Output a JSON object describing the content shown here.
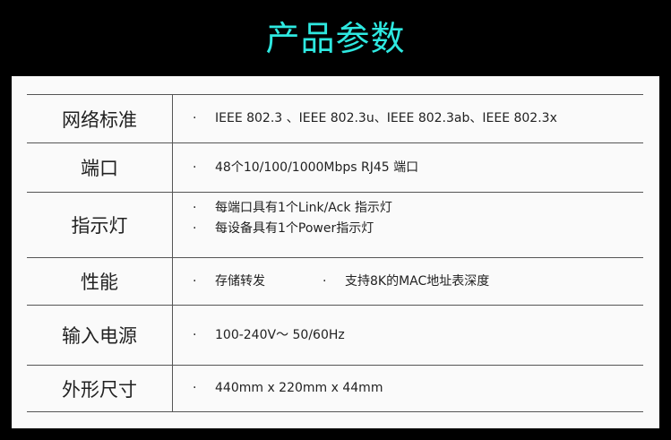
{
  "title": "产品参数",
  "rows": [
    {
      "label": "网络标准",
      "items": [
        "IEEE 802.3 、IEEE 802.3u、IEEE 802.3ab、IEEE 802.3x"
      ]
    },
    {
      "label": "端口",
      "items": [
        "48个10/100/1000Mbps RJ45 端口"
      ]
    },
    {
      "label": "指示灯",
      "items": [
        "每端口具有1个Link/Ack 指示灯",
        "每设备具有1个Power指示灯"
      ]
    },
    {
      "label": "性能",
      "items": [
        "存储转发",
        "支持8K的MAC地址表深度"
      ]
    },
    {
      "label": "输入电源",
      "items": [
        "100-240V～ 50/60Hz"
      ]
    },
    {
      "label": "外形尺寸",
      "items": [
        "440mm x 220mm x 44mm"
      ]
    }
  ],
  "bullet": "·"
}
